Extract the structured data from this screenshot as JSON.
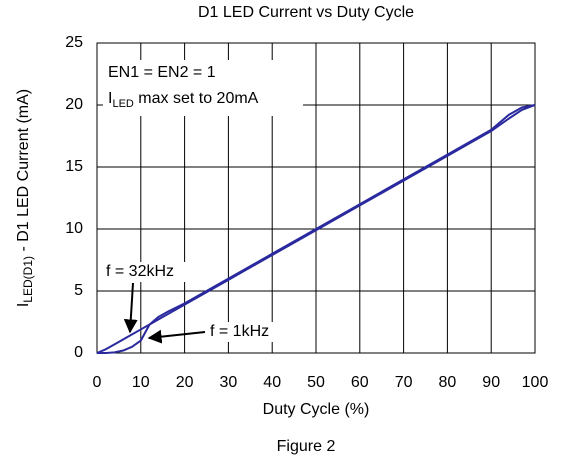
{
  "chart_data": {
    "type": "line",
    "title": "D1 LED Current vs Duty Cycle",
    "xlabel": "Duty Cycle (%)",
    "ylabel": {
      "main": "I",
      "sub": "LED(D1)",
      "rest": " - D1 LED Current (mA)"
    },
    "caption": "Figure 2",
    "annotations": [
      "EN1 = EN2 = 1",
      {
        "main": "I",
        "sub": "LED",
        "rest": " max set to 20mA"
      }
    ],
    "x": [
      0,
      2,
      4,
      6,
      8,
      10,
      12,
      14,
      16,
      20,
      30,
      40,
      50,
      60,
      70,
      80,
      90,
      94,
      97,
      100
    ],
    "series": [
      {
        "name": "f = 32kHz",
        "color": "#2a2a9e",
        "values": [
          0,
          0.3,
          0.7,
          1.1,
          1.5,
          1.9,
          2.3,
          2.7,
          3.1,
          3.9,
          5.9,
          7.9,
          9.9,
          11.9,
          13.9,
          15.9,
          17.9,
          18.9,
          19.6,
          20
        ]
      },
      {
        "name": "f = 1kHz",
        "color": "#2a2a9e",
        "values": [
          0,
          0,
          0.05,
          0.2,
          0.5,
          1.0,
          2.3,
          2.9,
          3.3,
          4.0,
          6.0,
          8.0,
          10.0,
          12.0,
          14.0,
          16.0,
          18.0,
          19.2,
          19.8,
          20
        ]
      }
    ],
    "xlim": [
      0,
      100
    ],
    "xticks": [
      0,
      10,
      20,
      30,
      40,
      50,
      60,
      70,
      80,
      90,
      100
    ],
    "ylim": [
      0,
      25
    ],
    "yticks": [
      0,
      5,
      10,
      15,
      20,
      25
    ],
    "grid": true
  }
}
